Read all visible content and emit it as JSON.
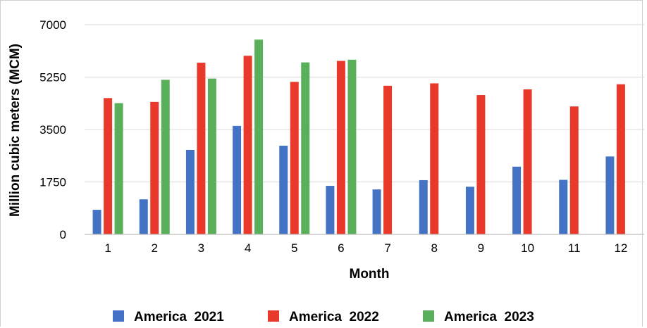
{
  "chart_data": {
    "type": "bar",
    "categories": [
      "1",
      "2",
      "3",
      "4",
      "5",
      "6",
      "7",
      "8",
      "9",
      "10",
      "11",
      "12"
    ],
    "series": [
      {
        "name": "America  2021",
        "color": "#4472c4",
        "values": [
          820,
          1170,
          2820,
          3620,
          2960,
          1620,
          1500,
          1810,
          1590,
          2260,
          1820,
          2600
        ]
      },
      {
        "name": "America  2022",
        "color": "#e8392a",
        "values": [
          4550,
          4420,
          5730,
          5960,
          5090,
          5790,
          4960,
          5040,
          4650,
          4840,
          4270,
          5010
        ]
      },
      {
        "name": "America  2023",
        "color": "#5aaf5a",
        "values": [
          4380,
          5160,
          5200,
          6500,
          5740,
          5830,
          null,
          null,
          null,
          null,
          null,
          null
        ]
      }
    ],
    "xlabel": "Month",
    "ylabel": "Million cubic meters (MCM)",
    "ylim": [
      0,
      7000
    ],
    "yticks": [
      0,
      1750,
      3500,
      5250,
      7000
    ],
    "grid": true,
    "legend_position": "bottom"
  }
}
